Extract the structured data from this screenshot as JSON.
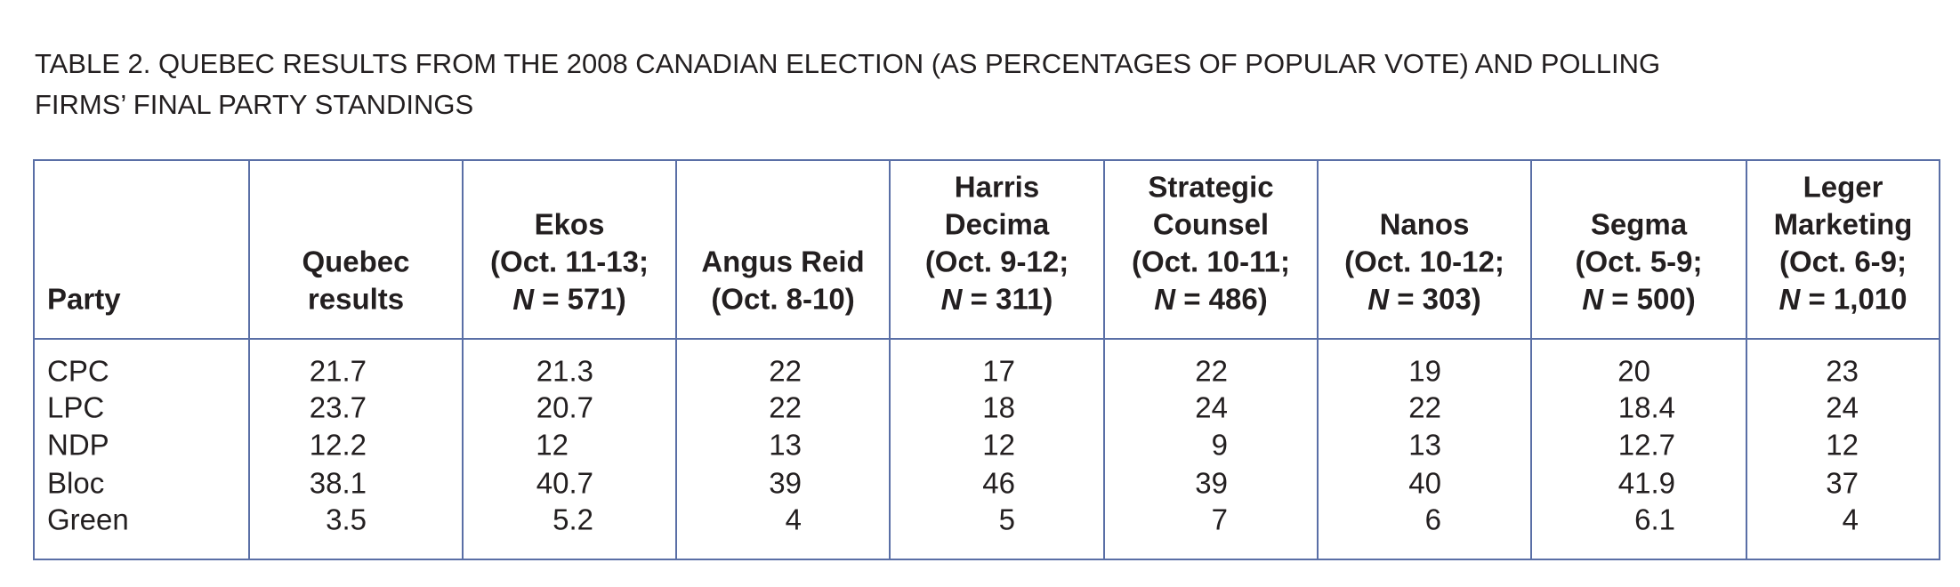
{
  "title": [
    "TABLE 2. QUEBEC RESULTS FROM THE 2008 CANADIAN ELECTION (AS PERCENTAGES OF POPULAR VOTE) AND POLLING",
    "FIRMS’ FINAL PARTY STANDINGS"
  ],
  "table": {
    "columns": [
      {
        "lines": [
          "Party"
        ]
      },
      {
        "lines": [
          "Quebec",
          "results"
        ]
      },
      {
        "lines": [
          "Ekos",
          "(Oct. 11-13;",
          "N = 571)"
        ]
      },
      {
        "lines": [
          "Angus Reid",
          "(Oct. 8-10)"
        ]
      },
      {
        "lines": [
          "Harris",
          "Decima",
          "(Oct. 9-12;",
          "N = 311)"
        ]
      },
      {
        "lines": [
          "Strategic",
          "Counsel",
          "(Oct. 10-11;",
          "N = 486)"
        ]
      },
      {
        "lines": [
          "Nanos",
          "(Oct. 10-12;",
          "N = 303)"
        ]
      },
      {
        "lines": [
          "Segma",
          "(Oct. 5-9;",
          "N = 500)"
        ]
      },
      {
        "lines": [
          "Leger",
          "Marketing",
          "(Oct. 6-9;",
          "N = 1,010"
        ]
      }
    ],
    "rows": [
      [
        "CPC",
        21.7,
        21.3,
        22,
        17,
        22,
        19,
        20,
        23
      ],
      [
        "LPC",
        23.7,
        20.7,
        22,
        18,
        24,
        22,
        18.4,
        24
      ],
      [
        "NDP",
        12.2,
        12,
        13,
        12,
        9,
        13,
        12.7,
        12
      ],
      [
        "Bloc",
        38.1,
        40.7,
        39,
        46,
        39,
        40,
        41.9,
        37
      ],
      [
        "Green",
        3.5,
        5.2,
        4,
        5,
        7,
        6,
        6.1,
        4
      ]
    ]
  }
}
